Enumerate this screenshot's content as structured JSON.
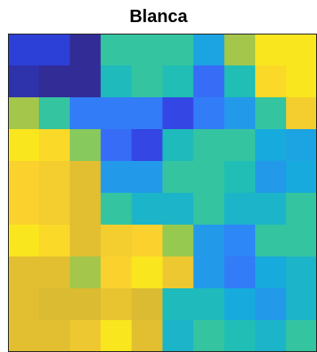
{
  "chart_data": {
    "type": "heatmap",
    "title": "Blanca",
    "xlabel": "",
    "ylabel": "",
    "grid": false,
    "colormap": "parula",
    "clim": [
      0,
      1
    ],
    "rows": 10,
    "cols": 10,
    "values": [
      [
        0.12,
        0.12,
        0.02,
        0.55,
        0.55,
        0.55,
        0.38,
        0.72,
        0.95,
        0.95
      ],
      [
        0.05,
        0.02,
        0.02,
        0.48,
        0.55,
        0.5,
        0.25,
        0.5,
        0.92,
        0.95
      ],
      [
        0.72,
        0.55,
        0.28,
        0.28,
        0.28,
        0.15,
        0.28,
        0.35,
        0.55,
        0.88
      ],
      [
        0.95,
        0.92,
        0.68,
        0.25,
        0.15,
        0.48,
        0.55,
        0.55,
        0.4,
        0.38
      ],
      [
        0.9,
        0.88,
        0.82,
        0.35,
        0.35,
        0.55,
        0.55,
        0.5,
        0.35,
        0.4
      ],
      [
        0.9,
        0.88,
        0.82,
        0.55,
        0.45,
        0.45,
        0.55,
        0.45,
        0.45,
        0.55
      ],
      [
        0.95,
        0.92,
        0.82,
        0.88,
        0.9,
        0.7,
        0.35,
        0.3,
        0.55,
        0.55
      ],
      [
        0.82,
        0.82,
        0.72,
        0.9,
        0.95,
        0.86,
        0.35,
        0.28,
        0.4,
        0.45
      ],
      [
        0.82,
        0.8,
        0.8,
        0.84,
        0.8,
        0.48,
        0.48,
        0.4,
        0.35,
        0.45
      ],
      [
        0.82,
        0.82,
        0.86,
        0.95,
        0.82,
        0.45,
        0.55,
        0.5,
        0.45,
        0.55
      ]
    ]
  }
}
